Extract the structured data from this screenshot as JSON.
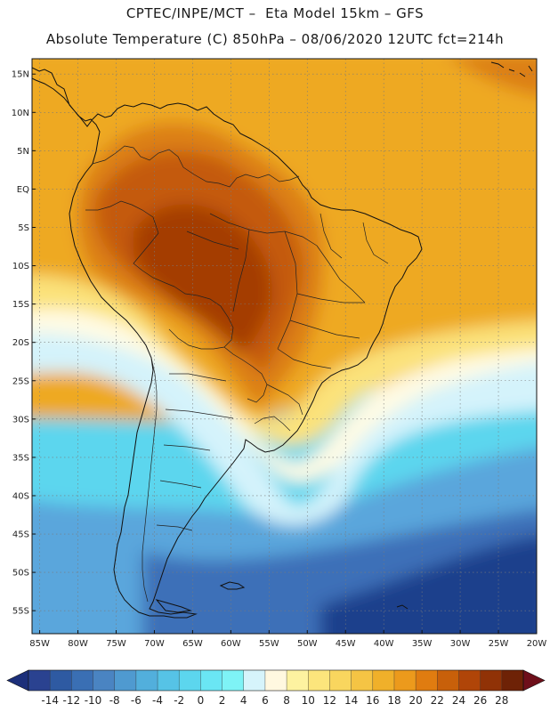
{
  "header": {
    "line1": "CPTEC/INPE/MCT –  Eta Model 15km – GFS",
    "line2": "Absolute Temperature (C) 850hPa – 08/06/2020 12UTC fct=214h"
  },
  "map": {
    "lon_range": [
      -86,
      -20
    ],
    "lat_range": [
      -58,
      17
    ],
    "lat_ticks": [
      {
        "value": 15,
        "label": "15N"
      },
      {
        "value": 10,
        "label": "10N"
      },
      {
        "value": 5,
        "label": "5N"
      },
      {
        "value": 0,
        "label": "EQ"
      },
      {
        "value": -5,
        "label": "5S"
      },
      {
        "value": -10,
        "label": "10S"
      },
      {
        "value": -15,
        "label": "15S"
      },
      {
        "value": -20,
        "label": "20S"
      },
      {
        "value": -25,
        "label": "25S"
      },
      {
        "value": -30,
        "label": "30S"
      },
      {
        "value": -35,
        "label": "35S"
      },
      {
        "value": -40,
        "label": "40S"
      },
      {
        "value": -45,
        "label": "45S"
      },
      {
        "value": -50,
        "label": "50S"
      },
      {
        "value": -55,
        "label": "55S"
      }
    ],
    "lon_ticks": [
      {
        "value": -85,
        "label": "85W"
      },
      {
        "value": -80,
        "label": "80W"
      },
      {
        "value": -75,
        "label": "75W"
      },
      {
        "value": -70,
        "label": "70W"
      },
      {
        "value": -65,
        "label": "65W"
      },
      {
        "value": -60,
        "label": "60W"
      },
      {
        "value": -55,
        "label": "55W"
      },
      {
        "value": -50,
        "label": "50W"
      },
      {
        "value": -45,
        "label": "45W"
      },
      {
        "value": -40,
        "label": "40W"
      },
      {
        "value": -35,
        "label": "35W"
      },
      {
        "value": -30,
        "label": "30W"
      },
      {
        "value": -25,
        "label": "25W"
      },
      {
        "value": -20,
        "label": "20W"
      }
    ],
    "colors": {
      "cold_deep": "#1e3f8c",
      "cold": "#3c6fb8",
      "cool": "#5aa6dc",
      "cyan": "#5cd6ee",
      "pale_blue": "#d4f3fb",
      "cream": "#fffbe4",
      "yellow": "#fbe27a",
      "amber": "#f5c444",
      "orange": "#eea922",
      "dark_orange": "#dc7f12",
      "burnt": "#c45a08",
      "brown": "#a43d05"
    }
  },
  "colorbar": {
    "labels": [
      "-14",
      "-12",
      "-10",
      "-8",
      "-6",
      "-4",
      "-2",
      "0",
      "2",
      "4",
      "6",
      "8",
      "10",
      "12",
      "14",
      "16",
      "18",
      "20",
      "22",
      "24",
      "26",
      "28"
    ],
    "colors": [
      "#2a4290",
      "#2e5aa2",
      "#3a6fb4",
      "#4a84c2",
      "#4f9ad0",
      "#52afdc",
      "#56c3e6",
      "#5cd6ee",
      "#6ae6f4",
      "#7ef3f6",
      "#d6f4fb",
      "#fff8e0",
      "#fdf2a0",
      "#fce57c",
      "#f9d65e",
      "#f5c444",
      "#f0b02a",
      "#ec9a1c",
      "#e07c10",
      "#c8600a",
      "#b04508",
      "#903206",
      "#6e2206"
    ],
    "under_color": "#1c2f7a",
    "over_color": "#6e0f1a"
  }
}
